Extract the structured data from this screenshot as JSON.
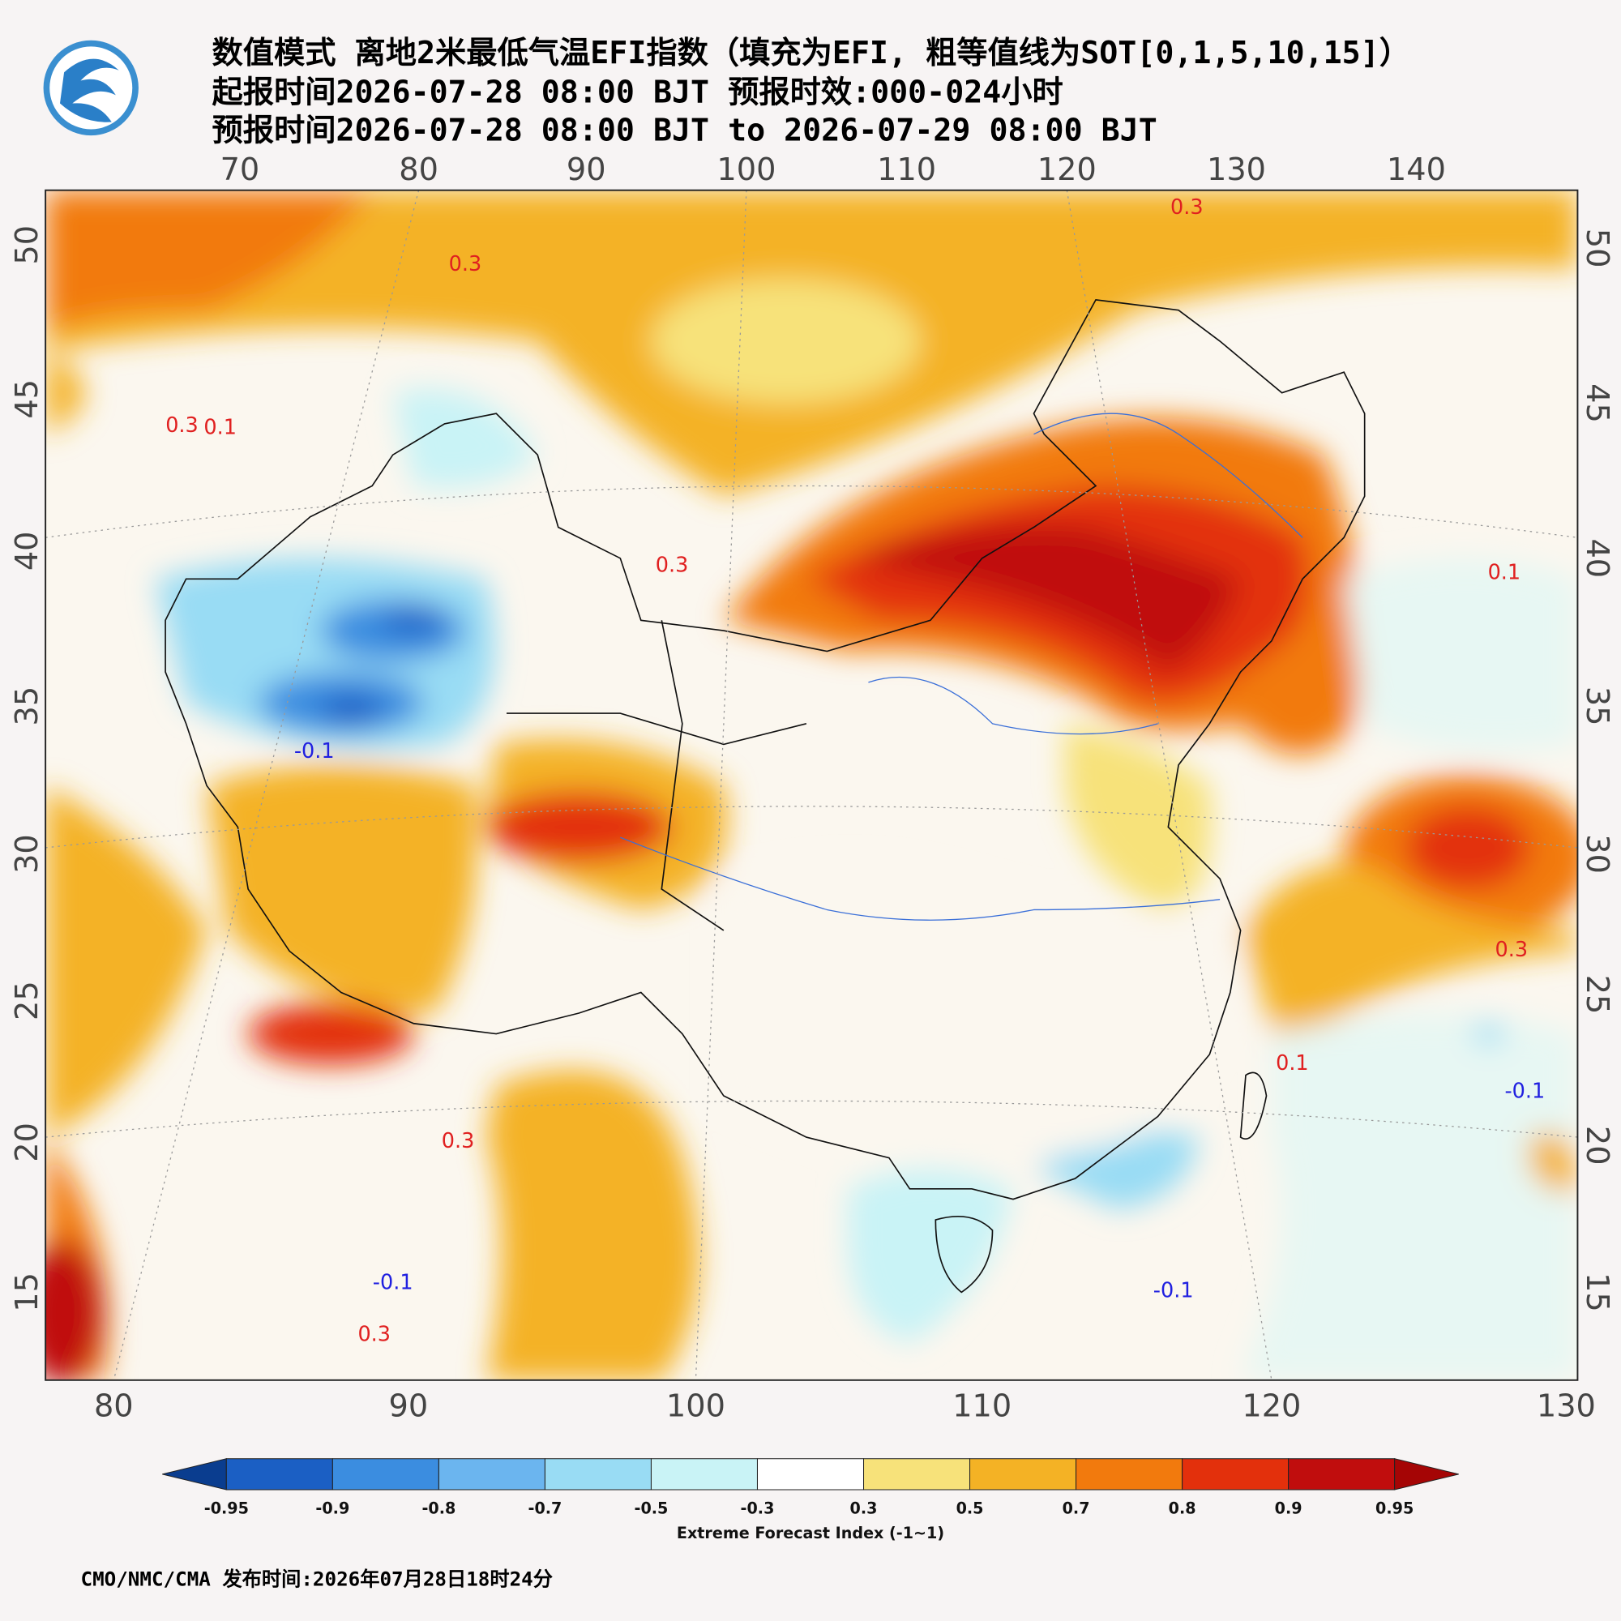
{
  "header": {
    "lines": [
      "数值模式 离地2米最低气温EFI指数（填充为EFI, 粗等值线为SOT[0,1,5,10,15]）",
      "起报时间2026-07-28 08:00 BJT 预报时效:000-024小时",
      "预报时间2026-07-28 08:00 BJT to 2026-07-29 08:00 BJT"
    ]
  },
  "map": {
    "top_lon_ticks": [
      "70",
      "80",
      "90",
      "100",
      "110",
      "120",
      "130",
      "140"
    ],
    "bottom_lon_ticks": [
      "80",
      "90",
      "100",
      "110",
      "120",
      "130"
    ],
    "left_lat_ticks": [
      "50",
      "45",
      "40",
      "35",
      "30",
      "25",
      "20",
      "15"
    ],
    "right_lat_ticks": [
      "50",
      "45",
      "40",
      "35",
      "30",
      "25",
      "20",
      "15"
    ],
    "contour_labels": [
      {
        "text": "0.3",
        "color": "#e02020"
      },
      {
        "text": "0.3",
        "color": "#e02020"
      },
      {
        "text": "0.3",
        "color": "#e02020"
      },
      {
        "text": "0.1",
        "color": "#e02020"
      },
      {
        "text": "0.3",
        "color": "#e02020"
      },
      {
        "text": "-0.1",
        "color": "#2020e0"
      },
      {
        "text": "0.1",
        "color": "#e02020"
      },
      {
        "text": "0.3",
        "color": "#e02020"
      },
      {
        "text": "-0.1",
        "color": "#2020e0"
      },
      {
        "text": "-0.1",
        "color": "#2020e0"
      },
      {
        "text": "0.3",
        "color": "#e02020"
      },
      {
        "text": "-0.1",
        "color": "#2020e0"
      },
      {
        "text": "0.1",
        "color": "#e02020"
      },
      {
        "text": "0.3",
        "color": "#e02020"
      }
    ]
  },
  "colorbar": {
    "levels": [
      "-0.95",
      "-0.9",
      "-0.8",
      "-0.7",
      "-0.5",
      "-0.3",
      "0.3",
      "0.5",
      "0.7",
      "0.8",
      "0.9",
      "0.95"
    ],
    "low_color": "#0a3d8f",
    "high_color": "#a50505",
    "colors": [
      "#1b5fc4",
      "#3b8de0",
      "#6bb5ef",
      "#99dcf4",
      "#c9f3f6",
      "#ffffff",
      "#f7e27a",
      "#f4b225",
      "#f27a0d",
      "#e3300c",
      "#c00d0d"
    ],
    "label": "Extreme Forecast Index (-1~1)"
  },
  "footer": "CMO/NMC/CMA 发布时间:2026年07月28日18时24分"
}
